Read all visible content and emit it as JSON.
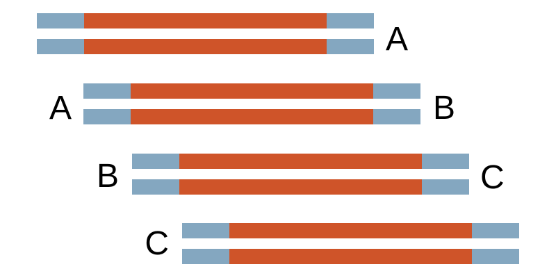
{
  "colors": {
    "core": "#cf5429",
    "overlap": "#84a7c0",
    "label": "#000000",
    "background": "#ffffff"
  },
  "fragments": [
    {
      "left_label": "",
      "right_label": "A"
    },
    {
      "left_label": "A",
      "right_label": "B"
    },
    {
      "left_label": "B",
      "right_label": "C"
    },
    {
      "left_label": "C",
      "right_label": ""
    }
  ]
}
